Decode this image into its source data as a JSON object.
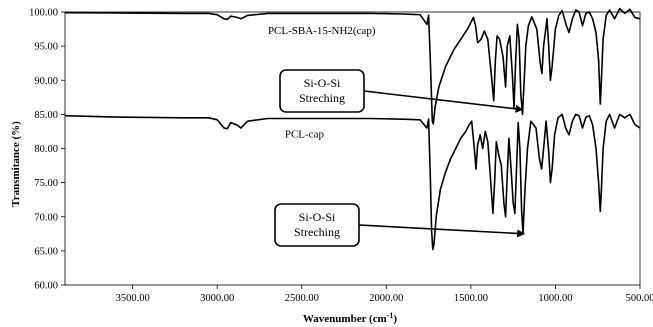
{
  "chart_data": {
    "type": "line",
    "title": "",
    "xlabel": "Wavenumber (cm",
    "xlabel_sup": "-1",
    "xlabel_close": ")",
    "ylabel": "Transmitance (%)",
    "xlim": [
      3900,
      500
    ],
    "ylim": [
      60,
      100
    ],
    "x_ticks": [
      3500,
      3000,
      2500,
      2000,
      1500,
      1000,
      500
    ],
    "x_tick_labels": [
      "3500.00",
      "3000.00",
      "2500.00",
      "2000.00",
      "1500.00",
      "1000.00",
      "500.00"
    ],
    "y_ticks": [
      60,
      65,
      70,
      75,
      80,
      85,
      90,
      95,
      100
    ],
    "y_tick_labels": [
      "60.00",
      "65.00",
      "70.00",
      "75.00",
      "80.00",
      "85.00",
      "90.00",
      "95.00",
      "100.00"
    ],
    "grid": false,
    "legend": "none",
    "series": [
      {
        "name": "PCL-SBA-15-NH2(cap)",
        "color": "#000000",
        "points": [
          [
            3900,
            99.9
          ],
          [
            3600,
            99.85
          ],
          [
            3200,
            99.8
          ],
          [
            3050,
            99.8
          ],
          [
            3000,
            99.6
          ],
          [
            2960,
            99.0
          ],
          [
            2940,
            98.9
          ],
          [
            2920,
            99.4
          ],
          [
            2880,
            99.2
          ],
          [
            2860,
            99.0
          ],
          [
            2820,
            99.5
          ],
          [
            2700,
            99.8
          ],
          [
            2400,
            99.8
          ],
          [
            2100,
            99.8
          ],
          [
            1900,
            99.7
          ],
          [
            1800,
            99.6
          ],
          [
            1760,
            98.2
          ],
          [
            1750,
            99.5
          ],
          [
            1740,
            93.0
          ],
          [
            1728,
            84.0
          ],
          [
            1722,
            83.6
          ],
          [
            1712,
            86.0
          ],
          [
            1690,
            89.0
          ],
          [
            1650,
            92.0
          ],
          [
            1600,
            94.5
          ],
          [
            1560,
            96.0
          ],
          [
            1520,
            97.5
          ],
          [
            1485,
            99.2
          ],
          [
            1472,
            98.0
          ],
          [
            1460,
            95.5
          ],
          [
            1440,
            96.0
          ],
          [
            1420,
            97.2
          ],
          [
            1400,
            96.0
          ],
          [
            1380,
            91.0
          ],
          [
            1365,
            87.0
          ],
          [
            1355,
            93.0
          ],
          [
            1345,
            96.5
          ],
          [
            1330,
            96.0
          ],
          [
            1310,
            93.5
          ],
          [
            1295,
            89.0
          ],
          [
            1285,
            95.0
          ],
          [
            1270,
            96.5
          ],
          [
            1255,
            91.0
          ],
          [
            1245,
            86.0
          ],
          [
            1235,
            93.0
          ],
          [
            1225,
            98.2
          ],
          [
            1215,
            96.0
          ],
          [
            1205,
            88.0
          ],
          [
            1195,
            85.0
          ],
          [
            1185,
            90.0
          ],
          [
            1175,
            95.0
          ],
          [
            1160,
            98.0
          ],
          [
            1140,
            99.3
          ],
          [
            1110,
            97.5
          ],
          [
            1090,
            92.5
          ],
          [
            1080,
            91.0
          ],
          [
            1070,
            95.0
          ],
          [
            1050,
            99.0
          ],
          [
            1040,
            95.0
          ],
          [
            1030,
            90.0
          ],
          [
            1020,
            92.0
          ],
          [
            1000,
            97.5
          ],
          [
            980,
            99.5
          ],
          [
            960,
            100.2
          ],
          [
            935,
            98.0
          ],
          [
            920,
            97.0
          ],
          [
            900,
            99.0
          ],
          [
            880,
            100.3
          ],
          [
            860,
            100.0
          ],
          [
            840,
            98.0
          ],
          [
            820,
            99.8
          ],
          [
            800,
            100.0
          ],
          [
            780,
            99.0
          ],
          [
            760,
            97.0
          ],
          [
            745,
            93.0
          ],
          [
            735,
            86.5
          ],
          [
            728,
            90.0
          ],
          [
            718,
            96.0
          ],
          [
            700,
            99.5
          ],
          [
            680,
            100.3
          ],
          [
            650,
            99.0
          ],
          [
            620,
            100.5
          ],
          [
            590,
            99.8
          ],
          [
            560,
            100.4
          ],
          [
            530,
            99.2
          ],
          [
            500,
            99.0
          ]
        ]
      },
      {
        "name": "PCL-cap",
        "color": "#000000",
        "points": [
          [
            3900,
            84.8
          ],
          [
            3600,
            84.6
          ],
          [
            3200,
            84.5
          ],
          [
            3050,
            84.5
          ],
          [
            3000,
            84.2
          ],
          [
            2960,
            83.0
          ],
          [
            2940,
            82.9
          ],
          [
            2920,
            83.8
          ],
          [
            2880,
            83.4
          ],
          [
            2860,
            83.0
          ],
          [
            2820,
            84.0
          ],
          [
            2700,
            84.4
          ],
          [
            2400,
            84.4
          ],
          [
            2100,
            84.4
          ],
          [
            1900,
            84.3
          ],
          [
            1800,
            84.2
          ],
          [
            1760,
            83.0
          ],
          [
            1750,
            84.3
          ],
          [
            1740,
            76.0
          ],
          [
            1732,
            68.0
          ],
          [
            1725,
            65.2
          ],
          [
            1718,
            66.0
          ],
          [
            1705,
            70.0
          ],
          [
            1680,
            74.0
          ],
          [
            1650,
            76.5
          ],
          [
            1620,
            78.5
          ],
          [
            1590,
            80.0
          ],
          [
            1560,
            81.5
          ],
          [
            1530,
            82.5
          ],
          [
            1510,
            83.5
          ],
          [
            1495,
            84.0
          ],
          [
            1480,
            80.0
          ],
          [
            1470,
            77.0
          ],
          [
            1460,
            80.5
          ],
          [
            1445,
            82.0
          ],
          [
            1430,
            80.0
          ],
          [
            1415,
            82.5
          ],
          [
            1400,
            81.0
          ],
          [
            1385,
            76.0
          ],
          [
            1370,
            70.5
          ],
          [
            1360,
            75.0
          ],
          [
            1350,
            81.0
          ],
          [
            1335,
            79.0
          ],
          [
            1320,
            77.5
          ],
          [
            1305,
            72.0
          ],
          [
            1295,
            70.0
          ],
          [
            1285,
            76.0
          ],
          [
            1275,
            81.5
          ],
          [
            1265,
            78.0
          ],
          [
            1250,
            72.0
          ],
          [
            1240,
            70.5
          ],
          [
            1230,
            77.0
          ],
          [
            1220,
            83.8
          ],
          [
            1210,
            80.0
          ],
          [
            1200,
            71.0
          ],
          [
            1192,
            67.5
          ],
          [
            1180,
            74.0
          ],
          [
            1165,
            80.0
          ],
          [
            1145,
            84.0
          ],
          [
            1115,
            83.0
          ],
          [
            1095,
            78.5
          ],
          [
            1082,
            77.0
          ],
          [
            1070,
            80.0
          ],
          [
            1055,
            84.0
          ],
          [
            1040,
            79.5
          ],
          [
            1030,
            75.0
          ],
          [
            1020,
            77.0
          ],
          [
            1005,
            82.0
          ],
          [
            985,
            84.5
          ],
          [
            960,
            85.0
          ],
          [
            940,
            83.0
          ],
          [
            920,
            82.0
          ],
          [
            900,
            84.0
          ],
          [
            880,
            85.0
          ],
          [
            860,
            84.8
          ],
          [
            840,
            83.0
          ],
          [
            820,
            84.6
          ],
          [
            800,
            84.8
          ],
          [
            780,
            83.5
          ],
          [
            760,
            80.0
          ],
          [
            745,
            75.0
          ],
          [
            735,
            70.8
          ],
          [
            728,
            74.0
          ],
          [
            718,
            80.0
          ],
          [
            700,
            84.0
          ],
          [
            680,
            85.0
          ],
          [
            650,
            83.0
          ],
          [
            620,
            85.0
          ],
          [
            590,
            84.5
          ],
          [
            560,
            85.0
          ],
          [
            530,
            83.5
          ],
          [
            500,
            83.0
          ]
        ]
      }
    ],
    "annotations": [
      {
        "lines": [
          "Si-O-Si",
          "Streching"
        ],
        "target": [
          1195,
          85.7
        ]
      },
      {
        "lines": [
          "Si-O-Si",
          "Streching"
        ],
        "target": [
          1185,
          67.5
        ]
      }
    ]
  }
}
